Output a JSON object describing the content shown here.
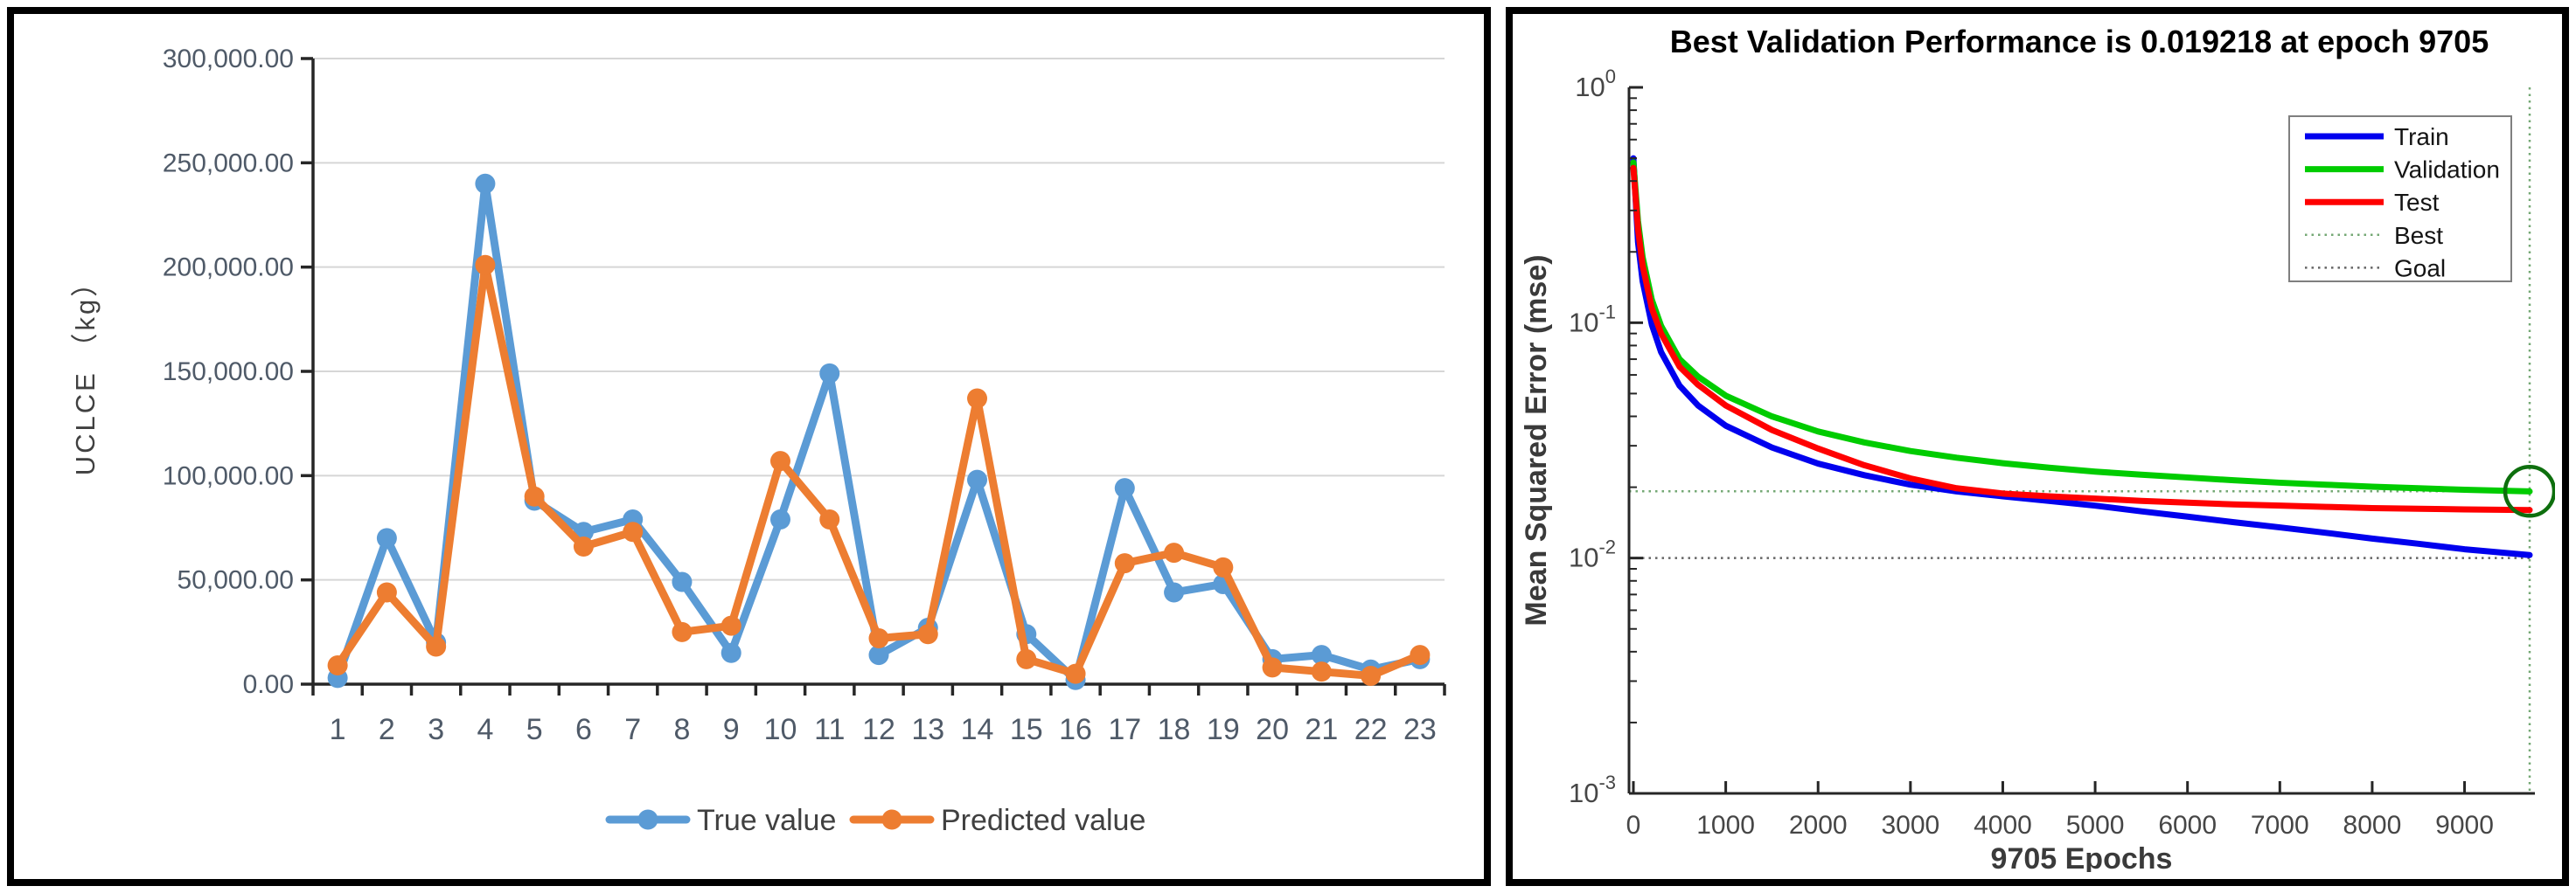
{
  "figure": {
    "left_panel_name": "UCLCE true vs predicted line chart",
    "right_panel_name": "Neural network training performance plot"
  },
  "chart_data": [
    {
      "type": "line",
      "title": "",
      "xlabel": "",
      "ylabel": "UCLCE （kg）",
      "ylim": [
        0,
        300000
      ],
      "ytick_labels": [
        "0.00",
        "50,000.00",
        "100,000.00",
        "150,000.00",
        "200,000.00",
        "250,000.00",
        "300,000.00"
      ],
      "categories": [
        "1",
        "2",
        "3",
        "4",
        "5",
        "6",
        "7",
        "8",
        "9",
        "10",
        "11",
        "12",
        "13",
        "14",
        "15",
        "16",
        "17",
        "18",
        "19",
        "20",
        "21",
        "22",
        "23"
      ],
      "grid": true,
      "legend_position": "bottom",
      "colors": {
        "grid": "#d6d6d6",
        "axis": "#262626",
        "tick_label": "#4f5a68",
        "legend_text": "#404040",
        "axis_title": "#404040"
      },
      "series": [
        {
          "name": "True value",
          "color": "#5B9BD5",
          "values": [
            3000,
            70000,
            20000,
            240000,
            88000,
            73000,
            79000,
            49000,
            15000,
            79000,
            149000,
            14000,
            27000,
            98000,
            24000,
            2000,
            94000,
            44000,
            48000,
            12000,
            14000,
            7000,
            12000
          ]
        },
        {
          "name": "Predicted value",
          "color": "#ED7D31",
          "values": [
            9000,
            44000,
            18000,
            201000,
            90000,
            66000,
            73000,
            25000,
            28000,
            107000,
            79000,
            22000,
            24000,
            137000,
            12000,
            5000,
            58000,
            63000,
            56000,
            8000,
            6000,
            4000,
            14000
          ]
        }
      ]
    },
    {
      "type": "line",
      "title": "Best Validation Performance is 0.019218 at epoch 9705",
      "xlabel": "9705 Epochs",
      "ylabel": "Mean Squared Error  (mse)",
      "yscale": "log",
      "ylim": [
        0.001,
        1
      ],
      "xlim": [
        0,
        9705
      ],
      "xticks": [
        0,
        1000,
        2000,
        3000,
        4000,
        5000,
        6000,
        7000,
        8000,
        9000
      ],
      "ytick_exponents": [
        "0",
        "-1",
        "-2",
        "-3"
      ],
      "legend_position": "top-right",
      "best": {
        "value": 0.019218,
        "epoch": 9705,
        "line_color": "#74a874",
        "circle_color": "#0e6f0e"
      },
      "goal": {
        "value": 0.01,
        "line_color": "#666666"
      },
      "colors": {
        "axis": "#262626",
        "tick_label": "#464646",
        "title": "#000000",
        "axis_title": "#3a3a3a"
      },
      "legend": [
        {
          "label": "Train",
          "color": "#0000EE",
          "style": "solid"
        },
        {
          "label": "Validation",
          "color": "#00CC00",
          "style": "solid"
        },
        {
          "label": "Test",
          "color": "#FF0000",
          "style": "solid"
        },
        {
          "label": "Best",
          "color": "#74a874",
          "style": "dotted"
        },
        {
          "label": "Goal",
          "color": "#666666",
          "style": "dotted"
        }
      ],
      "series": [
        {
          "name": "Train",
          "color": "#0000EE",
          "points": [
            [
              0,
              0.5
            ],
            [
              50,
              0.22
            ],
            [
              100,
              0.15
            ],
            [
              200,
              0.098
            ],
            [
              300,
              0.075
            ],
            [
              500,
              0.054
            ],
            [
              700,
              0.0445
            ],
            [
              1000,
              0.0365
            ],
            [
              1500,
              0.0295
            ],
            [
              2000,
              0.0252
            ],
            [
              2500,
              0.0225
            ],
            [
              3000,
              0.0205
            ],
            [
              3500,
              0.0192
            ],
            [
              4000,
              0.0183
            ],
            [
              4500,
              0.0175
            ],
            [
              5000,
              0.0167
            ],
            [
              5500,
              0.0158
            ],
            [
              6000,
              0.015
            ],
            [
              6500,
              0.0142
            ],
            [
              7000,
              0.0135
            ],
            [
              7500,
              0.0128
            ],
            [
              8000,
              0.0121
            ],
            [
              8500,
              0.0115
            ],
            [
              9000,
              0.0109
            ],
            [
              9705,
              0.0103
            ]
          ]
        },
        {
          "name": "Validation",
          "color": "#00CC00",
          "points": [
            [
              0,
              0.48
            ],
            [
              50,
              0.27
            ],
            [
              100,
              0.19
            ],
            [
              200,
              0.125
            ],
            [
              300,
              0.097
            ],
            [
              500,
              0.07
            ],
            [
              700,
              0.059
            ],
            [
              1000,
              0.049
            ],
            [
              1500,
              0.04
            ],
            [
              2000,
              0.0345
            ],
            [
              2500,
              0.031
            ],
            [
              3000,
              0.0285
            ],
            [
              3500,
              0.0267
            ],
            [
              4000,
              0.0253
            ],
            [
              4500,
              0.0242
            ],
            [
              5000,
              0.0233
            ],
            [
              5500,
              0.0226
            ],
            [
              6000,
              0.022
            ],
            [
              6500,
              0.0214
            ],
            [
              7000,
              0.0209
            ],
            [
              7500,
              0.0205
            ],
            [
              8000,
              0.0201
            ],
            [
              8500,
              0.0198
            ],
            [
              9000,
              0.0195
            ],
            [
              9705,
              0.0192
            ]
          ]
        },
        {
          "name": "Test",
          "color": "#FF0000",
          "points": [
            [
              0,
              0.455
            ],
            [
              50,
              0.25
            ],
            [
              100,
              0.175
            ],
            [
              200,
              0.115
            ],
            [
              300,
              0.09
            ],
            [
              500,
              0.065
            ],
            [
              700,
              0.0545
            ],
            [
              1000,
              0.0445
            ],
            [
              1500,
              0.035
            ],
            [
              2000,
              0.0292
            ],
            [
              2500,
              0.0248
            ],
            [
              3000,
              0.0218
            ],
            [
              3500,
              0.0198
            ],
            [
              4000,
              0.0188
            ],
            [
              4500,
              0.0183
            ],
            [
              5000,
              0.0179
            ],
            [
              5500,
              0.0175
            ],
            [
              6000,
              0.0172
            ],
            [
              6500,
              0.0169
            ],
            [
              7000,
              0.0167
            ],
            [
              7500,
              0.0165
            ],
            [
              8000,
              0.0163
            ],
            [
              8500,
              0.0162
            ],
            [
              9000,
              0.0161
            ],
            [
              9705,
              0.016
            ]
          ]
        }
      ]
    }
  ]
}
